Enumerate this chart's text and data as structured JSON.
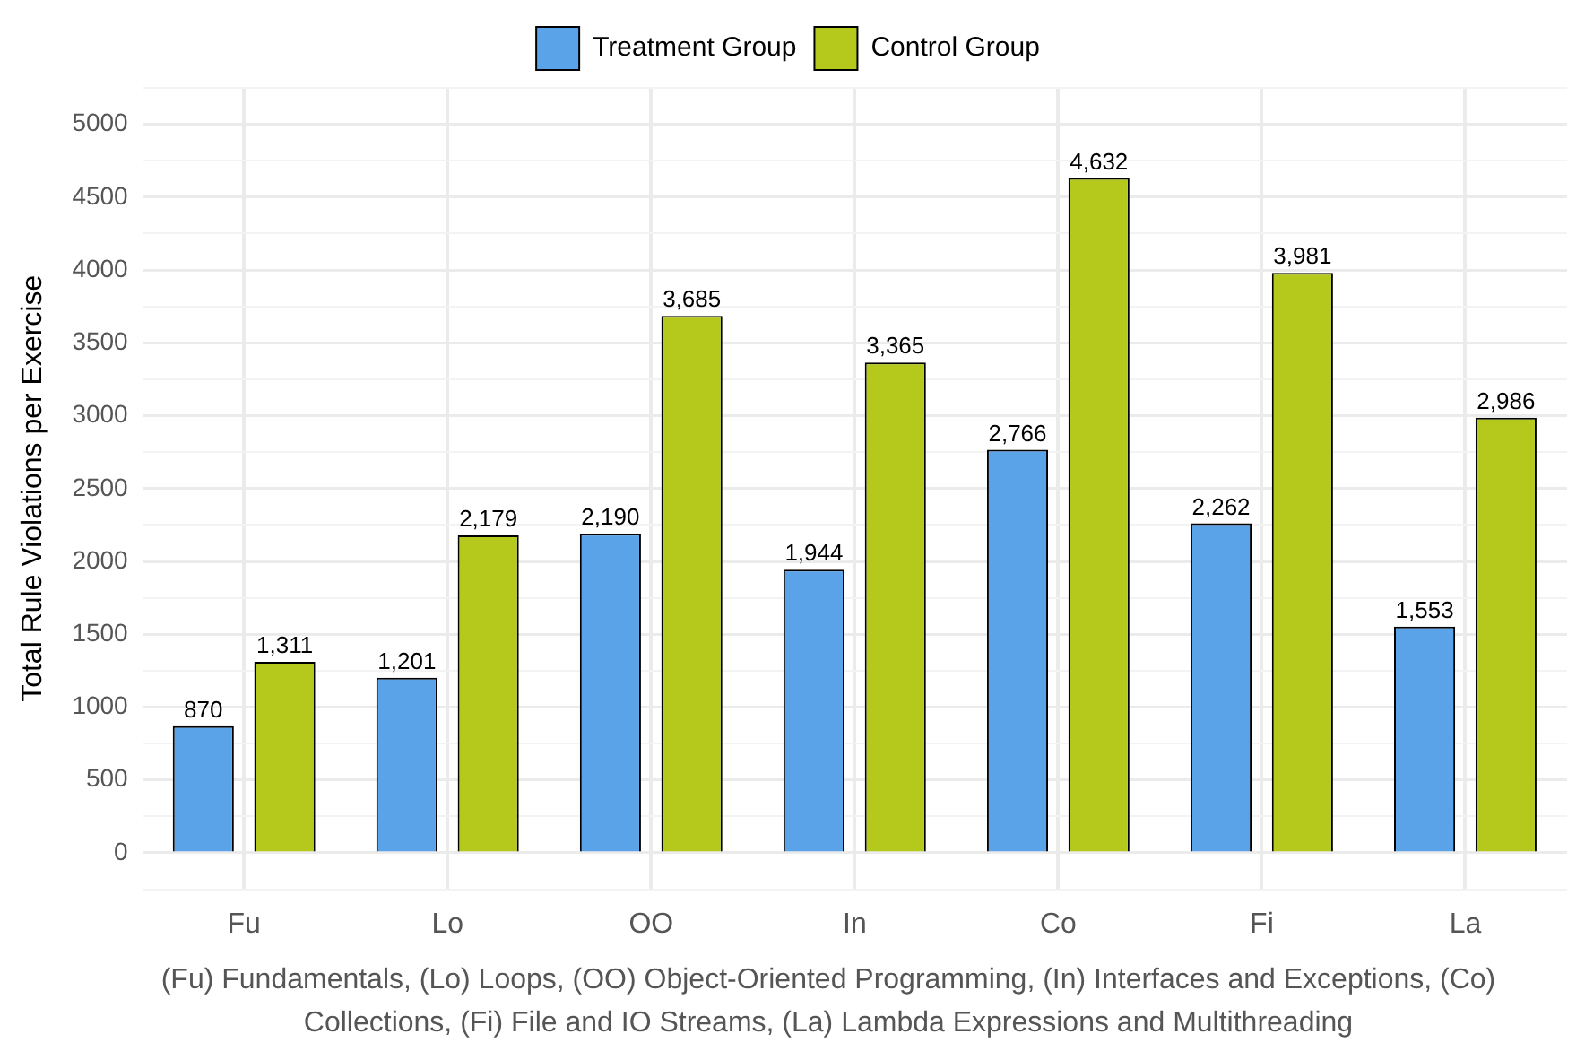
{
  "chart_data": {
    "type": "bar",
    "ylabel": "Total Rule Violations per Exercise",
    "xlabel": "(Fu) Fundamentals, (Lo) Loops, (OO) Object-Oriented Programming, (In) Interfaces and Exceptions, (Co) Collections, (Fi) File and IO Streams, (La) Lambda Expressions and Multithreading",
    "categories": [
      "Fu",
      "Lo",
      "OO",
      "In",
      "Co",
      "Fi",
      "La"
    ],
    "series": [
      {
        "name": "Treatment Group",
        "color": "#5ba3e9",
        "values": [
          870,
          1201,
          2190,
          1944,
          2766,
          2262,
          1553
        ],
        "value_labels": [
          "870",
          "1,201",
          "2,190",
          "1,944",
          "2,766",
          "2,262",
          "1,553"
        ]
      },
      {
        "name": "Control Group",
        "color": "#b5c91d",
        "values": [
          1311,
          2179,
          3685,
          3365,
          4632,
          3981,
          2986
        ],
        "value_labels": [
          "1,311",
          "2,179",
          "3,685",
          "3,365",
          "4,632",
          "3,981",
          "2,986"
        ]
      }
    ],
    "ylim": [
      -250,
      5250
    ],
    "yticks": [
      {
        "value": -250,
        "label": null
      },
      0,
      {
        "value": 250,
        "label": null
      },
      500,
      {
        "value": 750,
        "label": null
      },
      1000,
      {
        "value": 1250,
        "label": null
      },
      1500,
      {
        "value": 1750,
        "label": null
      },
      2000,
      {
        "value": 2250,
        "label": null
      },
      2500,
      {
        "value": 2750,
        "label": null
      },
      3000,
      {
        "value": 3250,
        "label": null
      },
      3500,
      {
        "value": 3750,
        "label": null
      },
      4000,
      {
        "value": 4250,
        "label": null
      },
      4500,
      {
        "value": 4750,
        "label": null
      },
      5000,
      {
        "value": 5250,
        "label": null
      }
    ],
    "grid": true,
    "legend": "top"
  }
}
